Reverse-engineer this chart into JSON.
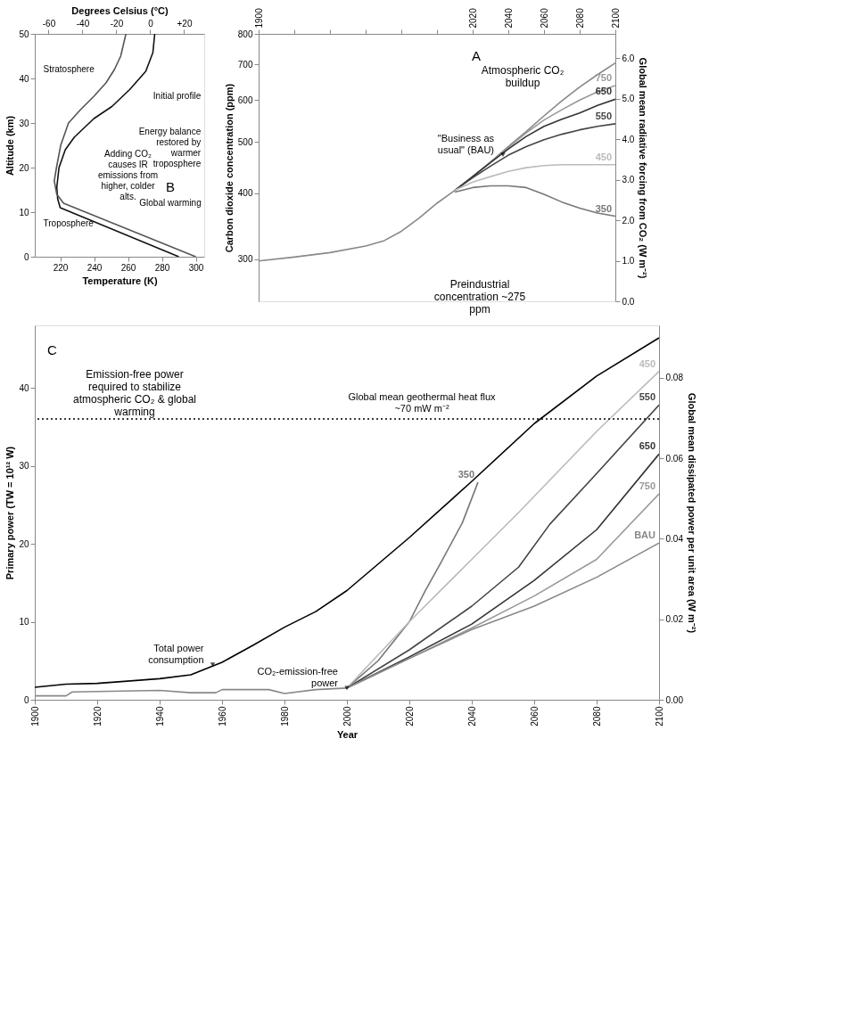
{
  "chart_data": [
    {
      "type": "line",
      "ylabel": "Carbon dioxide concentration (ppm)",
      "y2label": "Global mean radiative forcing from CO₂ (W m⁻²)",
      "log": "y",
      "grid": false,
      "marker": "none",
      "line_style": "solid",
      "xlim": [
        1900,
        2100
      ],
      "xticks": [
        1900,
        {
          "value": 1920,
          "label": null
        },
        {
          "value": 1940,
          "label": null
        },
        {
          "value": 1960,
          "label": null
        },
        {
          "value": 1980,
          "label": null
        },
        {
          "value": 2000,
          "label": null
        },
        2020,
        2040,
        2060,
        2080,
        2100
      ],
      "ylim": [
        250,
        800
      ],
      "yticks": [
        300,
        400,
        500,
        600,
        700,
        800
      ],
      "y2lim": [
        0,
        6.6
      ],
      "y2ticks": [
        {
          "value": 0,
          "label": "0.0"
        },
        {
          "value": 1,
          "label": "1.0"
        },
        {
          "value": 2,
          "label": "2.0"
        },
        {
          "value": 3,
          "label": "3.0"
        },
        {
          "value": 4,
          "label": "4.0"
        },
        {
          "value": 5,
          "label": "5.0"
        },
        {
          "value": 6,
          "label": "6.0"
        }
      ],
      "annotations": [
        "A",
        "Atmospheric CO₂ buildup",
        {
          "text": "\"Business as usual\" (BAU)",
          "x": 2037,
          "y": 473
        },
        "Preindustrial concentration ~275 ppm"
      ],
      "series": [
        {
          "color": "#888888",
          "x": [
            1900,
            1920,
            1940,
            1960,
            1970,
            1980,
            1990,
            2000,
            2010,
            2020,
            2030,
            2040,
            2050,
            2060,
            2070,
            2080,
            2090,
            2100
          ],
          "values": [
            298,
            303,
            309,
            318,
            325,
            339,
            359,
            383,
            405,
            430,
            458,
            490,
            523,
            560,
            598,
            635,
            670,
            705
          ]
        },
        {
          "name": "750",
          "color": "#999999",
          "x": [
            2010,
            2020,
            2030,
            2040,
            2050,
            2060,
            2070,
            2080,
            2090,
            2100
          ],
          "values": [
            405,
            430,
            458,
            488,
            520,
            550,
            575,
            600,
            622,
            639
          ]
        },
        {
          "name": "650",
          "color": "#333333",
          "x": [
            2010,
            2020,
            2030,
            2040,
            2050,
            2060,
            2070,
            2080,
            2090,
            2100
          ],
          "values": [
            405,
            430,
            457,
            485,
            512,
            535,
            552,
            567,
            586,
            602
          ]
        },
        {
          "name": "550",
          "color": "#444444",
          "x": [
            2010,
            2020,
            2030,
            2040,
            2050,
            2060,
            2070,
            2080,
            2090,
            2100
          ],
          "values": [
            405,
            428,
            450,
            472,
            490,
            505,
            517,
            527,
            535,
            541
          ]
        },
        {
          "name": "450",
          "color": "#bbbbbb",
          "x": [
            2010,
            2020,
            2030,
            2040,
            2050,
            2060,
            2070,
            2080,
            2090,
            2100
          ],
          "values": [
            405,
            420,
            430,
            440,
            447,
            451,
            453,
            453,
            453,
            453
          ]
        },
        {
          "name": "350",
          "color": "#777777",
          "x": [
            2010,
            2020,
            2030,
            2040,
            2050,
            2060,
            2070,
            2080,
            2090,
            2100
          ],
          "values": [
            402,
            410,
            413,
            413,
            410,
            398,
            385,
            375,
            367,
            362
          ]
        }
      ]
    },
    {
      "type": "line",
      "xlabel": "Temperature (K)",
      "ylabel": "Altitude (km)",
      "x2label": "Degrees Celsius (°C)",
      "grid": false,
      "marker": "none",
      "line_style": "solid",
      "xlim": [
        205,
        305
      ],
      "xticks": [
        220,
        240,
        260,
        280,
        300
      ],
      "ylim": [
        0,
        50
      ],
      "yticks": [
        0,
        10,
        20,
        30,
        40,
        50
      ],
      "x2lim": [
        -68.15,
        31.85
      ],
      "x2ticks": [
        -60,
        -40,
        -20,
        0,
        {
          "value": 20,
          "label": "+20"
        }
      ],
      "annotations": [
        "Stratosphere",
        "Troposphere",
        "Initial profile",
        "Energy balance restored by warmer troposphere",
        "Adding CO₂ causes IR emissions from higher, colder alts.",
        "B",
        "Global warming"
      ],
      "series": [
        {
          "color": "#111111",
          "x": [
            290,
            220,
            218.5,
            218,
            219.3,
            223,
            228.3,
            239.9,
            250.5,
            261,
            270.5,
            274.7,
            275.8
          ],
          "values": [
            0,
            11,
            13,
            15.6,
            20,
            24,
            26.8,
            31,
            33.7,
            37.5,
            41.6,
            45.8,
            50
          ]
        },
        {
          "color": "#555555",
          "x": [
            300,
            222,
            218,
            216.5,
            217.8,
            220.3,
            224.9,
            232,
            239.9,
            247,
            252,
            255.7,
            258.8
          ],
          "values": [
            0,
            12,
            14,
            17,
            20,
            25,
            30,
            33,
            36,
            39,
            42,
            45,
            50
          ]
        }
      ]
    },
    {
      "type": "line",
      "xlabel": "Year",
      "ylabel": "Primary power (TW = 10¹² W)",
      "y2label": "Global mean dissipated power per unit area (W m⁻²)",
      "grid": false,
      "marker": "none",
      "line_style": "solid",
      "xlim": [
        1900,
        2100
      ],
      "xticks": [
        1900,
        1920,
        1940,
        1960,
        1980,
        2000,
        2020,
        2040,
        2060,
        2080,
        2100
      ],
      "ylim": [
        0,
        48
      ],
      "yticks": [
        0,
        10,
        20,
        30,
        40
      ],
      "y2lim": [
        0,
        0.093
      ],
      "y2ticks": [
        {
          "value": 0,
          "label": "0.00"
        },
        {
          "value": 0.02,
          "label": "0.02"
        },
        {
          "value": 0.04,
          "label": "0.04"
        },
        {
          "value": 0.06,
          "label": "0.06"
        },
        {
          "value": 0.08,
          "label": "0.08"
        }
      ],
      "ref_lines": [
        {
          "axis": "y",
          "value": 36,
          "label": "Global mean geothermal heat flux ~70 mW m⁻²",
          "line_style": "dotted",
          "color": "#000000"
        }
      ],
      "annotations": [
        "C",
        "Emission-free power required to stabilize atmospheric CO₂ & global warming",
        {
          "text": "Total power consumption",
          "x": 1957,
          "y": 4.5
        },
        {
          "text": "CO₂-emission-free power",
          "x": 2000,
          "y": 1.5
        }
      ],
      "series": [
        {
          "color": "#000000",
          "x": [
            1900,
            1910,
            1920,
            1940,
            1950,
            1960,
            1970,
            1980,
            1990,
            2000,
            2020,
            2040,
            2060,
            2080,
            2100
          ],
          "values": [
            1.6,
            2.0,
            2.1,
            2.7,
            3.2,
            4.8,
            7.0,
            9.3,
            11.3,
            14.0,
            20.8,
            28.0,
            35.4,
            41.5,
            46.4
          ]
        },
        {
          "color": "#888888",
          "x": [
            1900,
            1910,
            1912,
            1940,
            1950,
            1958,
            1960,
            1975,
            1980,
            1990,
            2000
          ],
          "values": [
            0.5,
            0.5,
            1.0,
            1.2,
            0.9,
            0.9,
            1.3,
            1.3,
            0.8,
            1.3,
            1.5
          ]
        },
        {
          "name": "350",
          "color": "#777777",
          "x": [
            2000,
            2010,
            2020,
            2025,
            2030,
            2037,
            2042
          ],
          "values": [
            1.5,
            5,
            10,
            13.9,
            17.5,
            22.7,
            27.9
          ]
        },
        {
          "name": "450",
          "color": "#bbbbbb",
          "x": [
            2000,
            2020,
            2040,
            2055,
            2080,
            2100
          ],
          "values": [
            1.5,
            10,
            18,
            24,
            34.4,
            42.1
          ]
        },
        {
          "name": "550",
          "color": "#444444",
          "x": [
            2000,
            2020,
            2040,
            2055,
            2065,
            2080,
            2100
          ],
          "values": [
            1.5,
            6.4,
            12,
            17,
            22.5,
            29,
            37.8
          ]
        },
        {
          "name": "650",
          "color": "#333333",
          "x": [
            2000,
            2020,
            2040,
            2060,
            2080,
            2100
          ],
          "values": [
            1.5,
            5.5,
            9.7,
            15.3,
            21.8,
            31.5
          ]
        },
        {
          "name": "750",
          "color": "#999999",
          "x": [
            2000,
            2020,
            2040,
            2060,
            2080,
            2100
          ],
          "values": [
            1.5,
            5.3,
            9.2,
            13.3,
            18,
            26.4
          ]
        },
        {
          "name": "BAU",
          "color": "#888888",
          "x": [
            2000,
            2020,
            2040,
            2060,
            2080,
            2100
          ],
          "values": [
            1.5,
            5.3,
            9.0,
            12,
            15.7,
            20.1
          ]
        }
      ]
    }
  ]
}
